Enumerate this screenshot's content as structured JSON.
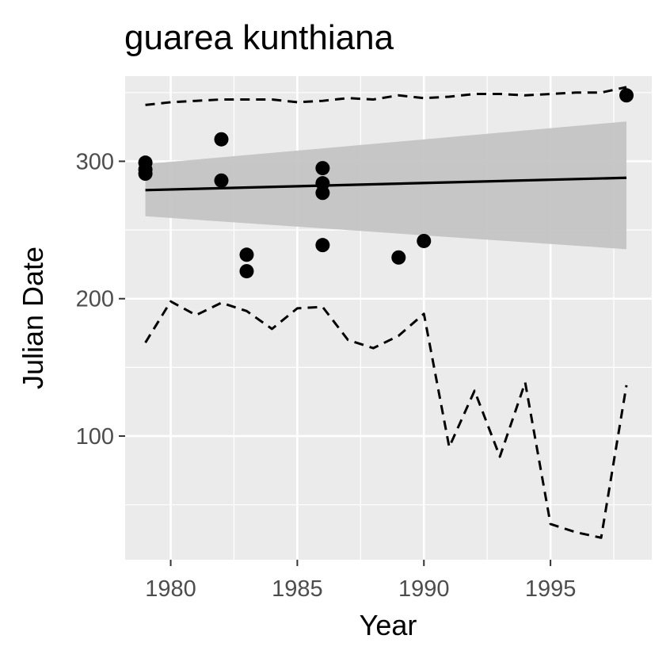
{
  "chart_data": {
    "type": "scatter",
    "title": "guarea kunthiana",
    "xlabel": "Year",
    "ylabel": "Julian Date",
    "xlim": [
      1978.2,
      1999.0
    ],
    "ylim": [
      10,
      362
    ],
    "x_ticks": [
      1980,
      1985,
      1990,
      1995
    ],
    "x_tick_labels": [
      "1980",
      "1985",
      "1990",
      "1995"
    ],
    "y_ticks": [
      100,
      200,
      300
    ],
    "y_tick_labels": [
      "100",
      "200",
      "300"
    ],
    "grid": true,
    "legend": "none",
    "background": "#ebebeb",
    "points": [
      {
        "x": 1979,
        "y": 299
      },
      {
        "x": 1979,
        "y": 294
      },
      {
        "x": 1979,
        "y": 291
      },
      {
        "x": 1982,
        "y": 316
      },
      {
        "x": 1982,
        "y": 286
      },
      {
        "x": 1983,
        "y": 232
      },
      {
        "x": 1983,
        "y": 220
      },
      {
        "x": 1986,
        "y": 295
      },
      {
        "x": 1986,
        "y": 284
      },
      {
        "x": 1986,
        "y": 277
      },
      {
        "x": 1986,
        "y": 239
      },
      {
        "x": 1989,
        "y": 230
      },
      {
        "x": 1990,
        "y": 242
      },
      {
        "x": 1998,
        "y": 348
      }
    ],
    "trend_line": {
      "x": [
        1979,
        1998
      ],
      "y": [
        279,
        288
      ]
    },
    "confidence_band": {
      "x": [
        1979,
        1998
      ],
      "upper": [
        298,
        329
      ],
      "lower": [
        260,
        236
      ],
      "color": "#c4c4c4"
    },
    "upper_bound": {
      "x": [
        1979,
        1980,
        1981,
        1982,
        1983,
        1984,
        1985,
        1986,
        1987,
        1988,
        1989,
        1990,
        1991,
        1992,
        1993,
        1994,
        1995,
        1996,
        1997,
        1998
      ],
      "y": [
        341,
        343,
        344,
        345,
        345,
        345,
        343,
        344,
        346,
        345,
        348,
        346,
        347,
        349,
        349,
        348,
        349,
        350,
        350,
        354
      ]
    },
    "lower_bound": {
      "x": [
        1979,
        1980,
        1981,
        1982,
        1983,
        1984,
        1985,
        1986,
        1987,
        1988,
        1989,
        1990,
        1991,
        1992,
        1993,
        1994,
        1995,
        1996,
        1997,
        1998
      ],
      "y": [
        168,
        198,
        188,
        197,
        191,
        178,
        193,
        194,
        170,
        164,
        173,
        189,
        92,
        133,
        85,
        139,
        36,
        30,
        26,
        137
      ]
    }
  }
}
